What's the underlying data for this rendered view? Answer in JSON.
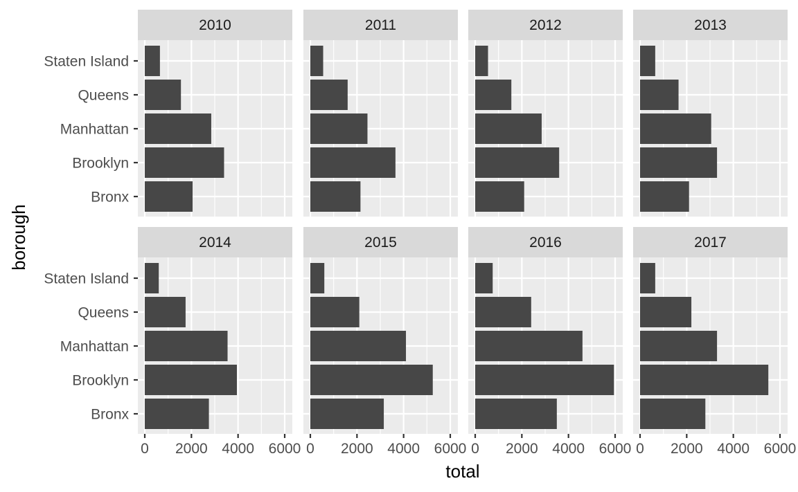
{
  "chart_data": {
    "type": "bar",
    "orientation": "horizontal",
    "facet_by": "year",
    "xlabel": "total",
    "ylabel": "borough",
    "xlim": [
      0,
      6000
    ],
    "x_ticks": [
      0,
      2000,
      4000,
      6000
    ],
    "x_tick_labels": [
      "0",
      "2000",
      "4000",
      "6000"
    ],
    "grid": true,
    "categories": [
      "Staten Island",
      "Queens",
      "Manhattan",
      "Brooklyn",
      "Bronx"
    ],
    "panels": [
      {
        "year": "2010",
        "values": [
          650,
          1550,
          2850,
          3400,
          2050
        ]
      },
      {
        "year": "2011",
        "values": [
          550,
          1600,
          2450,
          3650,
          2150
        ]
      },
      {
        "year": "2012",
        "values": [
          550,
          1550,
          2850,
          3600,
          2100
        ]
      },
      {
        "year": "2013",
        "values": [
          650,
          1650,
          3050,
          3300,
          2100
        ]
      },
      {
        "year": "2014",
        "values": [
          600,
          1750,
          3550,
          3950,
          2750
        ]
      },
      {
        "year": "2015",
        "values": [
          600,
          2100,
          4100,
          5250,
          3150
        ]
      },
      {
        "year": "2016",
        "values": [
          750,
          2400,
          4600,
          5950,
          3500
        ]
      },
      {
        "year": "2017",
        "values": [
          650,
          2200,
          3300,
          5500,
          2800
        ]
      }
    ]
  }
}
